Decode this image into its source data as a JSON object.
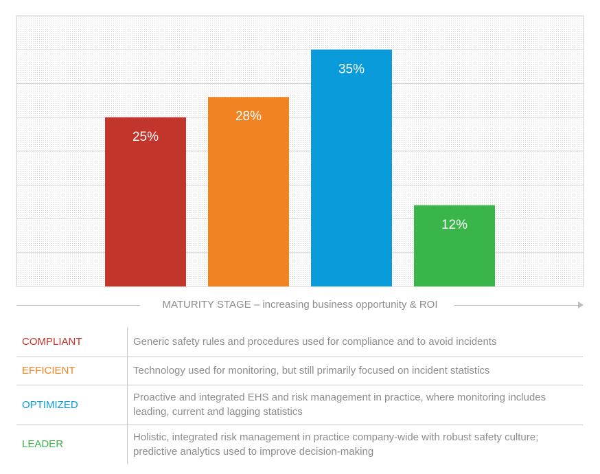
{
  "chart_data": {
    "type": "bar",
    "categories": [
      "COMPLIANT",
      "EFFICIENT",
      "OPTIMIZED",
      "LEADER"
    ],
    "values": [
      25,
      28,
      35,
      12
    ],
    "data_labels": [
      "25%",
      "28%",
      "35%",
      "12%"
    ],
    "colors": [
      "#C1352B",
      "#F28322",
      "#0A9BDB",
      "#3AB54A"
    ],
    "ylim": [
      0,
      40
    ],
    "grid": true,
    "xlabel": "MATURITY  STAGE – increasing business opportunity  & ROI",
    "ylabel": ""
  },
  "legend_table": [
    {
      "label": "COMPLIANT",
      "color": "#C1352B",
      "description": "Generic safety rules and procedures used for compliance and to avoid incidents"
    },
    {
      "label": "EFFICIENT",
      "color": "#F28322",
      "description": "Technology  used for monitoring,  but still primarily focused on incident statistics"
    },
    {
      "label": "OPTIMIZED",
      "color": "#0A9BDB",
      "description": "Proactive and integrated EHS and risk management in practice, where monitoring includes leading, current and lagging statistics"
    },
    {
      "label": "LEADER",
      "color": "#3AB54A",
      "description": "Holistic, integrated risk management in practice company-wide with robust safety culture; predictive analytics used to improve decision-making"
    }
  ]
}
